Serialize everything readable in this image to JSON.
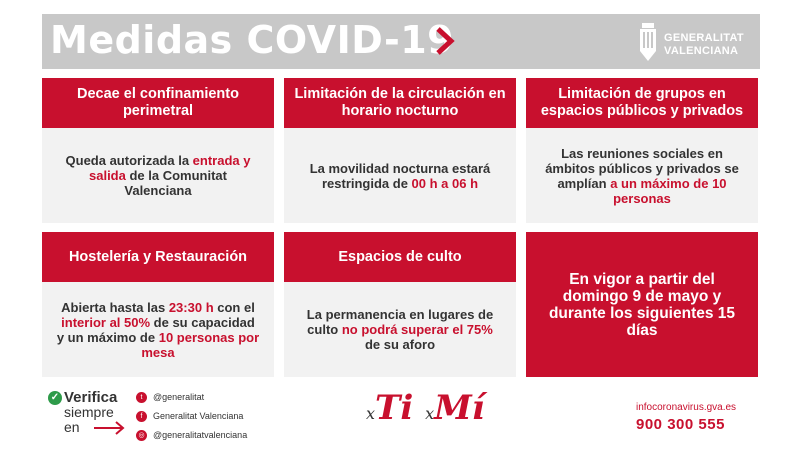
{
  "header": {
    "title": "Medidas COVID-19",
    "logo_line1": "GENERALITAT",
    "logo_line2": "VALENCIANA"
  },
  "cards": [
    {
      "title": "Decae el confinamiento perimetral",
      "body": [
        {
          "t": "Queda autorizada la ",
          "red": false
        },
        {
          "t": "entrada y salida",
          "red": true
        },
        {
          "t": " de la Comunitat Valenciana",
          "red": false
        }
      ]
    },
    {
      "title": "Limitación de la circulación en horario nocturno",
      "body": [
        {
          "t": "La movilidad nocturna estará restringida de ",
          "red": false
        },
        {
          "t": "00 h a 06 h",
          "red": true
        }
      ]
    },
    {
      "title": "Limitación de grupos en espacios públicos y privados",
      "body": [
        {
          "t": "Las reuniones sociales en ámbitos públicos y privados se amplían ",
          "red": false
        },
        {
          "t": "a un máximo de 10 personas",
          "red": true
        }
      ]
    },
    {
      "title": "Hostelería y Restauración",
      "body": [
        {
          "t": "Abierta hasta las ",
          "red": false
        },
        {
          "t": "23:30 h",
          "red": true
        },
        {
          "t": " con el ",
          "red": false
        },
        {
          "t": "interior al 50%",
          "red": true
        },
        {
          "t": " de su capacidad y un máximo de ",
          "red": false
        },
        {
          "t": "10 personas por mesa",
          "red": true
        }
      ]
    },
    {
      "title": "Espacios de culto",
      "body": [
        {
          "t": "La permanencia en lugares de culto ",
          "red": false
        },
        {
          "t": "no podrá superar el 75%",
          "red": true
        },
        {
          "t": " de su aforo",
          "red": false
        }
      ]
    }
  ],
  "highlight": "En vigor a partir del domingo 9 de mayo y durante los siguientes 15 días",
  "footer": {
    "verify_line1": "Verifica",
    "verify_line2": "siempre",
    "verify_line3": "en",
    "twitter": "@generalitat",
    "facebook": "Generalitat Valenciana",
    "instagram": "@generalitatvalenciana",
    "slogan_x1": "x",
    "slogan_ti": "Ti",
    "slogan_x2": "x",
    "slogan_mi": "Mí",
    "url": "infocoronavirus.gva.es",
    "phone": "900 300 555"
  },
  "colors": {
    "brand_red": "#c8102e",
    "header_grey": "#c8c8c8",
    "card_bg": "#f2f2f2",
    "check_green": "#2e9b4a"
  }
}
